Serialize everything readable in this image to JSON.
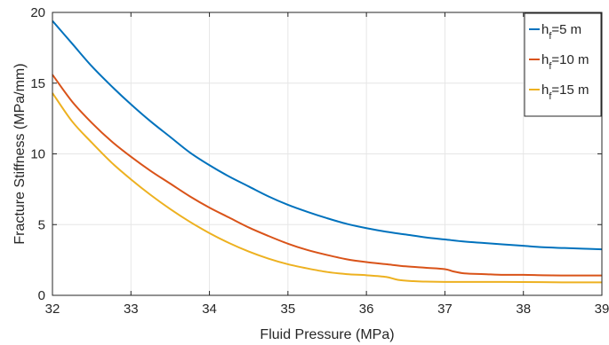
{
  "chart_data": {
    "type": "line",
    "title": "",
    "xlabel": "Fluid Pressure (MPa)",
    "ylabel": "Fracture Stiffness (MPa/mm)",
    "xlim": [
      32,
      39
    ],
    "ylim": [
      0,
      20
    ],
    "xticks": [
      "32",
      "33",
      "34",
      "35",
      "36",
      "37",
      "38",
      "39"
    ],
    "yticks": [
      "0",
      "5",
      "10",
      "15",
      "20"
    ],
    "grid": true,
    "legend_position": "top-right",
    "series": [
      {
        "name": "h_f=5 m",
        "legend_main": "h",
        "legend_sub": "f",
        "legend_rest": "=5 m",
        "color": "#0072BD",
        "x": [
          32,
          32.25,
          32.5,
          32.75,
          33,
          33.25,
          33.5,
          33.75,
          34,
          34.25,
          34.5,
          34.75,
          35,
          35.25,
          35.5,
          35.75,
          36,
          36.25,
          36.5,
          36.75,
          37,
          37.25,
          37.5,
          37.75,
          38,
          38.25,
          38.5,
          38.75,
          39
        ],
        "y": [
          19.4,
          17.8,
          16.2,
          14.8,
          13.5,
          12.3,
          11.2,
          10.1,
          9.2,
          8.4,
          7.7,
          7.0,
          6.4,
          5.9,
          5.45,
          5.05,
          4.75,
          4.5,
          4.3,
          4.1,
          3.95,
          3.8,
          3.7,
          3.6,
          3.5,
          3.4,
          3.35,
          3.3,
          3.25
        ]
      },
      {
        "name": "h_f=10 m",
        "legend_main": "h",
        "legend_sub": "f",
        "legend_rest": "=10 m",
        "color": "#D95319",
        "x": [
          32,
          32.25,
          32.5,
          32.75,
          33,
          33.25,
          33.5,
          33.75,
          34,
          34.25,
          34.5,
          34.75,
          35,
          35.25,
          35.5,
          35.75,
          36,
          36.25,
          36.5,
          36.75,
          37,
          37.1,
          37.25,
          37.5,
          37.75,
          38,
          38.25,
          38.5,
          38.75,
          39
        ],
        "y": [
          15.6,
          13.7,
          12.2,
          10.9,
          9.8,
          8.8,
          7.9,
          7.0,
          6.2,
          5.5,
          4.8,
          4.2,
          3.65,
          3.2,
          2.85,
          2.55,
          2.35,
          2.2,
          2.05,
          1.95,
          1.85,
          1.7,
          1.55,
          1.5,
          1.45,
          1.45,
          1.42,
          1.4,
          1.4,
          1.4
        ]
      },
      {
        "name": "h_f=15 m",
        "legend_main": "h",
        "legend_sub": "f",
        "legend_rest": "=15 m",
        "color": "#EDB120",
        "x": [
          32,
          32.25,
          32.5,
          32.75,
          33,
          33.25,
          33.5,
          33.75,
          34,
          34.25,
          34.5,
          34.75,
          35,
          35.25,
          35.5,
          35.75,
          36,
          36.25,
          36.4,
          36.6,
          36.75,
          37,
          37.25,
          37.5,
          37.75,
          38,
          38.25,
          38.5,
          38.75,
          39
        ],
        "y": [
          14.3,
          12.3,
          10.8,
          9.4,
          8.2,
          7.1,
          6.1,
          5.2,
          4.4,
          3.7,
          3.1,
          2.6,
          2.2,
          1.9,
          1.65,
          1.5,
          1.42,
          1.3,
          1.1,
          1.0,
          0.97,
          0.95,
          0.95,
          0.95,
          0.95,
          0.94,
          0.93,
          0.92,
          0.92,
          0.92
        ]
      }
    ]
  }
}
